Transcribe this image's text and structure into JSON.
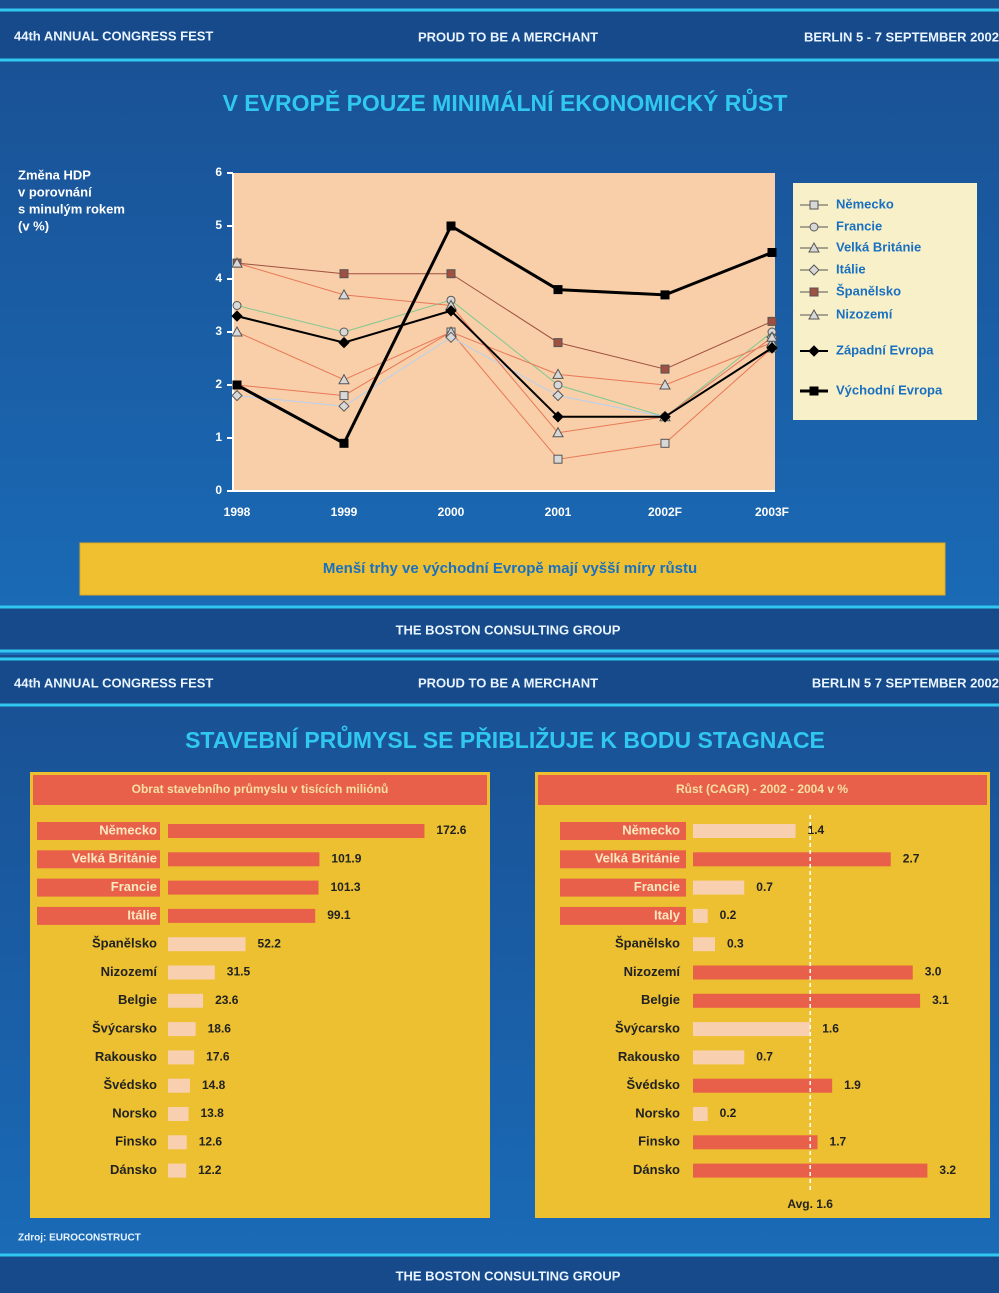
{
  "slides": [
    {
      "header": {
        "left": "44th ANNUAL CONGRESS FEST",
        "center": "PROUD TO BE A MERCHANT",
        "right": "BERLIN 5 - 7 SEPTEMBER 2002"
      },
      "footer": "THE BOSTON CONSULTING GROUP"
    },
    {
      "header": {
        "left": "44th ANNUAL CONGRESS FEST",
        "center": "PROUD TO BE A MERCHANT",
        "right": "BERLIN 5 7 SEPTEMBER 2002"
      },
      "title": "STAVEBNÍ PRŮMYSL SE PŘIBLIŽUJE K BODU STAGNACE",
      "source": "Zdroj: EUROCONSTRUCT",
      "footer": "THE BOSTON CONSULTING GROUP"
    }
  ],
  "chart_data": [
    {
      "type": "line",
      "title": "V EVROPĚ POUZE MINIMÁLNÍ EKONOMICKÝ RŮST",
      "y_label": [
        "Změna HDP",
        "v porovnání",
        "s minulým rokem",
        "(v %)"
      ],
      "categories": [
        "1998",
        "1999",
        "2000",
        "2001",
        "2002F",
        "2003F"
      ],
      "ylim": [
        0,
        6
      ],
      "yticks": [
        0,
        1,
        2,
        3,
        4,
        5,
        6
      ],
      "series": [
        {
          "name": "Německo",
          "color": "#e87858",
          "marker": "square",
          "marker_fill": "#d8d8d8",
          "width": 1,
          "values": [
            2.0,
            1.8,
            3.0,
            0.6,
            0.9,
            2.7
          ]
        },
        {
          "name": "Francie",
          "color": "#80c890",
          "marker": "circle",
          "marker_fill": "#d8d8d8",
          "width": 1,
          "values": [
            3.5,
            3.0,
            3.6,
            2.0,
            1.4,
            3.0
          ]
        },
        {
          "name": "Velká Británie",
          "color": "#e87858",
          "marker": "triangle",
          "marker_fill": "#d8d8d8",
          "width": 1,
          "values": [
            3.0,
            2.1,
            3.0,
            2.2,
            2.0,
            2.8
          ]
        },
        {
          "name": "Itálie",
          "color": "#b8d0f0",
          "marker": "diamond",
          "marker_fill": "#d8d8d8",
          "width": 1,
          "values": [
            1.8,
            1.6,
            2.9,
            1.8,
            1.4,
            2.9
          ]
        },
        {
          "name": "Španělsko",
          "color": "#a05040",
          "marker": "square",
          "marker_fill": "#a05040",
          "width": 1,
          "values": [
            4.3,
            4.1,
            4.1,
            2.8,
            2.3,
            3.2
          ]
        },
        {
          "name": "Nizozemí",
          "color": "#e87858",
          "marker": "triangle",
          "marker_fill": "#d8d8d8",
          "width": 1,
          "values": [
            4.3,
            3.7,
            3.5,
            1.1,
            1.4,
            2.9
          ]
        },
        {
          "name": "Západní Evropa",
          "color": "#000000",
          "marker": "diamond",
          "marker_fill": "#000000",
          "width": 2,
          "values": [
            3.3,
            2.8,
            3.4,
            1.4,
            1.4,
            2.7
          ]
        },
        {
          "name": "Východní Evropa",
          "color": "#000000",
          "marker": "square",
          "marker_fill": "#000000",
          "width": 3,
          "values": [
            2.0,
            0.9,
            5.0,
            3.8,
            3.7,
            4.5
          ]
        }
      ],
      "annotation": "Menší trhy ve východní Evropě mají vyšší míry růstu"
    },
    {
      "type": "hbar",
      "title": "Obrat stavebního průmyslu v tisících miliónů",
      "categories": [
        "Německo",
        "Velká Británie",
        "Francie",
        "Itálie",
        "Španělsko",
        "Nizozemí",
        "Belgie",
        "Švýcarsko",
        "Rakousko",
        "Švédsko",
        "Norsko",
        "Finsko",
        "Dánsko"
      ],
      "values": [
        172.6,
        101.9,
        101.3,
        99.1,
        52.2,
        31.5,
        23.6,
        18.6,
        17.6,
        14.8,
        13.8,
        12.6,
        12.2
      ],
      "colors": [
        "#e8604a",
        "#e8604a",
        "#e8604a",
        "#e8604a",
        "#f8d0b0",
        "#f8d0b0",
        "#f8d0b0",
        "#f8d0b0",
        "#f8d0b0",
        "#f8d0b0",
        "#f8d0b0",
        "#f8d0b0",
        "#f8d0b0"
      ],
      "label_highlight": [
        true,
        true,
        true,
        true,
        false,
        false,
        false,
        false,
        false,
        false,
        false,
        false,
        false
      ],
      "xlim": [
        0,
        210
      ]
    },
    {
      "type": "hbar",
      "title": "Růst (CAGR) - 2002 - 2004 v %",
      "categories": [
        "Německo",
        "Velká Británie",
        "Francie",
        "Italy",
        "Španělsko",
        "Nizozemí",
        "Belgie",
        "Švýcarsko",
        "Rakousko",
        "Švédsko",
        "Norsko",
        "Finsko",
        "Dánsko"
      ],
      "values": [
        1.4,
        2.7,
        0.7,
        0.2,
        0.3,
        3.0,
        3.1,
        1.6,
        0.7,
        1.9,
        0.2,
        1.7,
        3.2
      ],
      "value_labels": [
        "1.4",
        "2.7",
        "0.7",
        "0.2",
        "0.3",
        "3.0",
        "3.1",
        "1.6",
        "0.7",
        "1.9",
        "0.2",
        "1.7",
        "3.2"
      ],
      "colors": [
        "#f8d0b0",
        "#e8604a",
        "#f8d0b0",
        "#f8d0b0",
        "#f8d0b0",
        "#e8604a",
        "#e8604a",
        "#f8d0b0",
        "#f8d0b0",
        "#e8604a",
        "#f8d0b0",
        "#e8604a",
        "#e8604a"
      ],
      "label_highlight": [
        true,
        true,
        true,
        true,
        false,
        false,
        false,
        false,
        false,
        false,
        false,
        false,
        false
      ],
      "avg": 1.6,
      "avg_label": "Avg. 1.6",
      "xlim": [
        0,
        4
      ]
    }
  ]
}
